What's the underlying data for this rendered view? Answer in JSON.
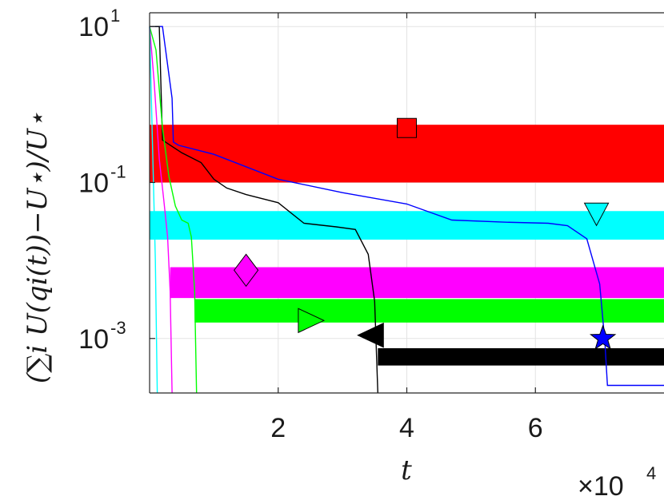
{
  "chart_data": {
    "type": "line",
    "xlabel": "t",
    "ylabel": "(∑i U(qi(t))−U⋆)/U⋆",
    "x_multiplier": "×10",
    "x_multiplier_exp": "4",
    "xlim": [
      0,
      80000
    ],
    "ylim": [
      0.0002,
      15
    ],
    "yscale": "log",
    "grid": true,
    "x_ticks": [
      {
        "value": 20000,
        "label": "2"
      },
      {
        "value": 40000,
        "label": "4"
      },
      {
        "value": 60000,
        "label": "6"
      }
    ],
    "y_ticks": [
      {
        "value": 10,
        "base": "10",
        "exp": "1"
      },
      {
        "value": 0.1,
        "base": "10",
        "exp": "-1"
      },
      {
        "value": 0.001,
        "base": "10",
        "exp": "-3"
      }
    ],
    "bands": [
      {
        "color": "#ff0000",
        "x_start": 0,
        "x_end": 80000,
        "y_low": 0.1,
        "y_high": 0.55
      },
      {
        "color": "#00ffff",
        "x_start": 0,
        "x_end": 80000,
        "y_low": 0.0185,
        "y_high": 0.043
      },
      {
        "color": "#ff00ff",
        "x_start": 3200,
        "x_end": 80000,
        "y_low": 0.0033,
        "y_high": 0.0082
      },
      {
        "color": "#00ff00",
        "x_start": 7000,
        "x_end": 80000,
        "y_low": 0.0016,
        "y_high": 0.0032
      },
      {
        "color": "#000000",
        "x_start": 35500,
        "x_end": 80000,
        "y_low": 0.00045,
        "y_high": 0.00075
      }
    ],
    "series": [
      {
        "color": "#0000ff",
        "x": [
          0,
          2000,
          3500,
          3700,
          4500,
          10000,
          20000,
          30000,
          40000,
          47000,
          55000,
          62000,
          65000,
          68000,
          70000,
          70800,
          71200,
          80000
        ],
        "y": [
          10,
          10,
          1.2,
          0.33,
          0.3,
          0.23,
          0.11,
          0.074,
          0.053,
          0.033,
          0.031,
          0.03,
          0.028,
          0.019,
          0.005,
          0.0009,
          0.00025,
          0.00025
        ]
      },
      {
        "color": "#000000",
        "x": [
          0,
          1500,
          2000,
          5000,
          8000,
          10000,
          12000,
          15000,
          20000,
          24000,
          29000,
          32000,
          34000,
          35000,
          35500
        ],
        "y": [
          10,
          10,
          0.35,
          0.24,
          0.18,
          0.11,
          0.085,
          0.07,
          0.055,
          0.03,
          0.027,
          0.025,
          0.012,
          0.003,
          0.0002
        ]
      },
      {
        "color": "#00ff00",
        "x": [
          0,
          1000,
          2000,
          3000,
          4000,
          5000,
          6000,
          6500,
          7000,
          7300
        ],
        "y": [
          10,
          5,
          0.5,
          0.12,
          0.05,
          0.033,
          0.03,
          0.02,
          0.004,
          0.0002
        ]
      },
      {
        "color": "#ff00ff",
        "x": [
          0,
          700,
          1500,
          2200,
          2800,
          3200,
          3500
        ],
        "y": [
          10,
          2,
          0.2,
          0.06,
          0.02,
          0.004,
          0.0002
        ]
      },
      {
        "color": "#00ffff",
        "x": [
          0,
          300,
          600,
          900,
          1200
        ],
        "y": [
          10,
          1,
          0.1,
          0.01,
          0.0002
        ]
      }
    ],
    "markers": [
      {
        "shape": "square",
        "color": "#ff0000",
        "x": 40000,
        "y": 0.5
      },
      {
        "shape": "triangle-down",
        "color": "#00ffff",
        "x": 69500,
        "y": 0.04
      },
      {
        "shape": "diamond",
        "color": "#ff00ff",
        "x": 15000,
        "y": 0.0075
      },
      {
        "shape": "triangle-right",
        "color": "#00ff00",
        "x": 25000,
        "y": 0.0017
      },
      {
        "shape": "triangle-left",
        "color": "#000000",
        "x": 34500,
        "y": 0.0011
      },
      {
        "shape": "star",
        "color": "#0000ff",
        "x": 70500,
        "y": 0.001
      }
    ]
  }
}
